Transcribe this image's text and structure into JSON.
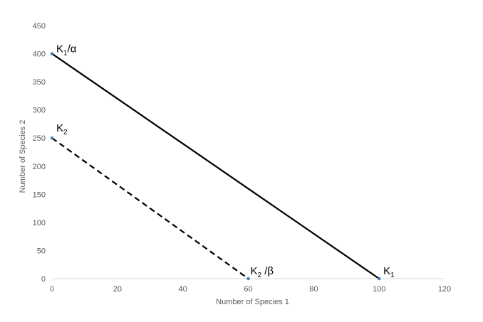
{
  "chart_data": {
    "type": "line",
    "title": "",
    "xlabel": "Number of Species 1",
    "ylabel": "Number of Species 2",
    "xlim": [
      0,
      120
    ],
    "ylim": [
      0,
      450
    ],
    "xticks": [
      0,
      20,
      40,
      60,
      80,
      100,
      120
    ],
    "yticks": [
      0,
      50,
      100,
      150,
      200,
      250,
      300,
      350,
      400,
      450
    ],
    "grid": false,
    "legend": "none",
    "series": [
      {
        "style": "solid",
        "color": "#000000",
        "marker_color": "#4472c4",
        "points": [
          {
            "x": 0,
            "y": 400
          },
          {
            "x": 100,
            "y": 0
          }
        ]
      },
      {
        "style": "dashed",
        "color": "#000000",
        "marker_color": "#4472c4",
        "points": [
          {
            "x": 0,
            "y": 250
          },
          {
            "x": 60,
            "y": 0
          }
        ]
      }
    ],
    "annotations": [
      {
        "main": "K",
        "sub": "1",
        "suffix": "/α",
        "at": {
          "x": 0,
          "y": 400
        }
      },
      {
        "main": "K",
        "sub": "2",
        "suffix": "",
        "at": {
          "x": 0,
          "y": 250
        }
      },
      {
        "main": "K",
        "sub": "2",
        "suffix": " /β",
        "at": {
          "x": 60,
          "y": 0
        }
      },
      {
        "main": "K",
        "sub": "1",
        "suffix": "",
        "at": {
          "x": 100,
          "y": 0
        }
      }
    ],
    "colors": {
      "axis": "#d9d9d9",
      "text": "#595959"
    }
  }
}
